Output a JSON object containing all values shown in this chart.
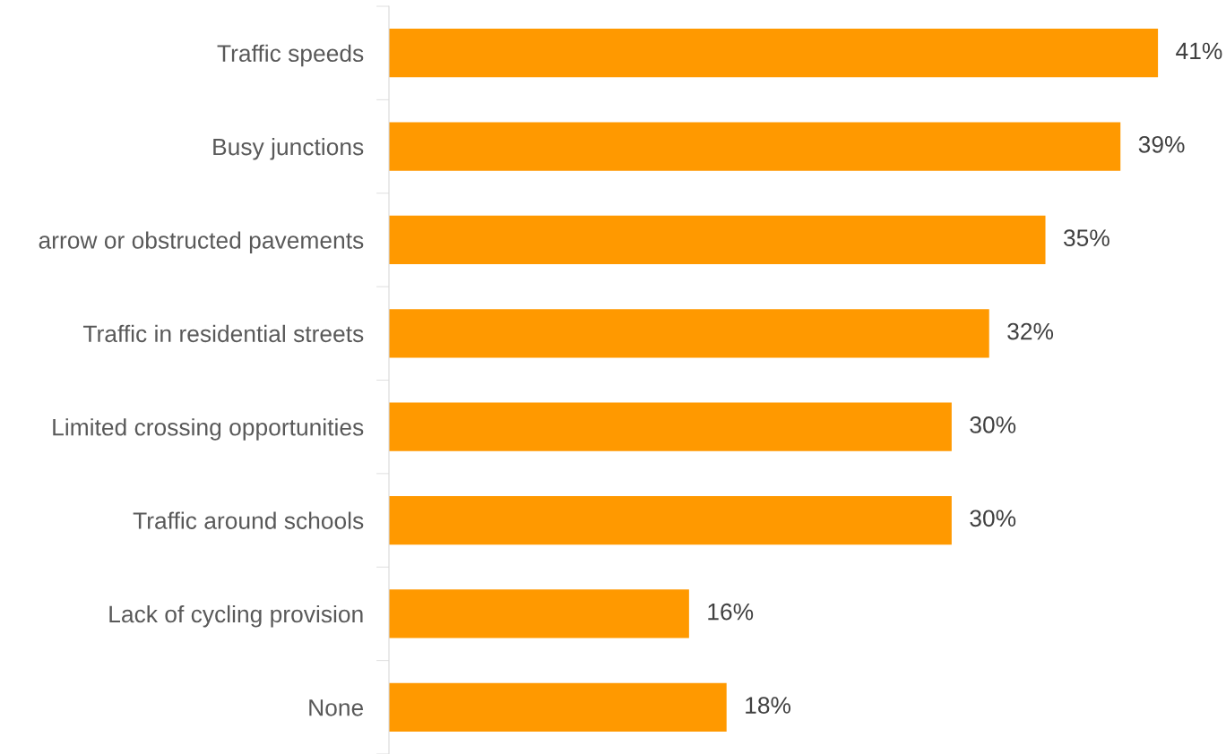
{
  "chart_data": {
    "type": "bar",
    "orientation": "horizontal",
    "categories": [
      "Traffic speeds",
      "Busy junctions",
      "arrow or obstructed pavements",
      "Traffic in residential streets",
      "Limited crossing opportunities",
      "Traffic around schools",
      "Lack of cycling provision",
      "None"
    ],
    "values": [
      41,
      39,
      35,
      32,
      30,
      30,
      16,
      18
    ],
    "value_labels": [
      "41%",
      "39%",
      "35%",
      "32%",
      "30%",
      "30%",
      "16%",
      "18%"
    ],
    "color": "#ff9900",
    "tick_labels": "y",
    "grid": false,
    "legend": false
  }
}
